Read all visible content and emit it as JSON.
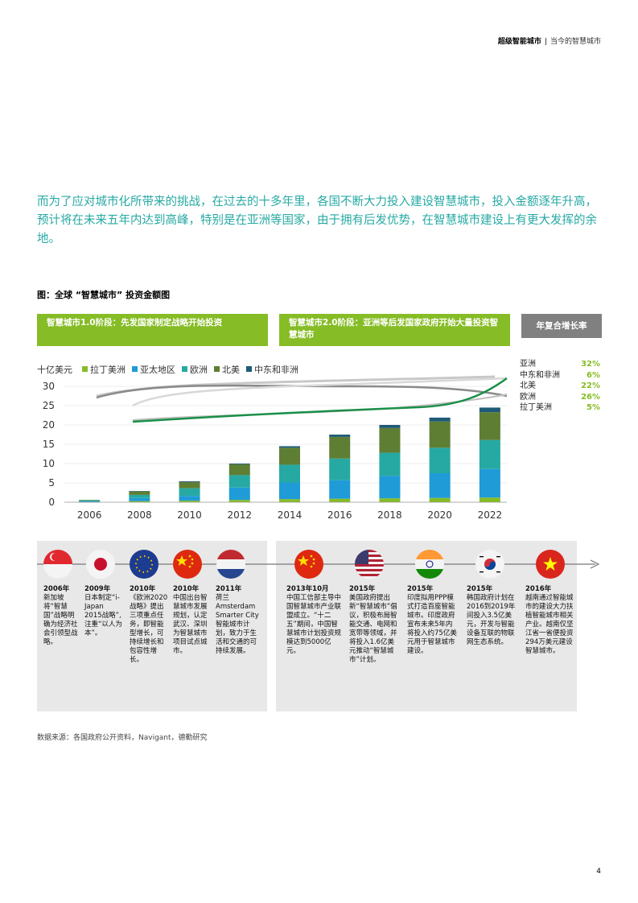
{
  "header": {
    "title": "超级智能城市",
    "separator": "|",
    "subtitle": "当今的智慧城市"
  },
  "intro": "而为了应对城市化所带来的挑战，在过去的十多年里，各国不断大力投入建设智慧城市，投入金额逐年升高，预计将在未来五年内达到高峰，特别是在亚洲等国家，由于拥有后发优势，在智慧城市建设上有更大发挥的余地。",
  "figure": {
    "title": "图：全球 “智慧城市” 投资金额图",
    "phase1": "智慧城市1.0阶段：先发国家制定战略开始投资",
    "phase2": "智慧城市2.0阶段：亚洲等后发国家政府开始大量投资智慧城市",
    "cagr_header": "年复合增长率",
    "cagr": [
      {
        "region": "亚洲",
        "rate": "32%"
      },
      {
        "region": "中东和非洲",
        "rate": "6%"
      },
      {
        "region": "北美",
        "rate": "22%"
      },
      {
        "region": "欧洲",
        "rate": "26%"
      },
      {
        "region": "拉丁美洲",
        "rate": "5%"
      }
    ]
  },
  "chart_data": {
    "type": "bar",
    "ylabel": "十亿美元",
    "ylim": [
      0,
      30
    ],
    "yticks": [
      "0",
      "5",
      "10",
      "15",
      "20",
      "25",
      "30"
    ],
    "xticks": [
      "2006",
      "2008",
      "2010",
      "2012",
      "2014",
      "2016",
      "2018",
      "2020",
      "2022"
    ],
    "categories": [
      "2006",
      "2008",
      "2010",
      "2012",
      "2014",
      "2016",
      "2018",
      "2020",
      "2022"
    ],
    "series": [
      {
        "name": "拉丁美洲",
        "color": "#86bc25",
        "values": [
          0.1,
          0.3,
          0.4,
          0.6,
          0.8,
          0.9,
          1.0,
          1.1,
          1.2
        ]
      },
      {
        "name": "亚太地区",
        "color": "#1f9bd7",
        "values": [
          0.2,
          0.8,
          1.2,
          3.2,
          4.3,
          4.8,
          5.8,
          6.4,
          7.4
        ]
      },
      {
        "name": "欧洲",
        "color": "#26a9a3",
        "values": [
          0.2,
          0.8,
          2.0,
          3.2,
          4.6,
          5.6,
          6.0,
          6.6,
          7.5
        ]
      },
      {
        "name": "北美",
        "color": "#5e7e34",
        "values": [
          0.1,
          0.9,
          1.6,
          2.8,
          4.4,
          5.6,
          6.4,
          6.8,
          7.2
        ]
      },
      {
        "name": "中东和非洲",
        "color": "#1f5a78",
        "values": [
          0.0,
          0.1,
          0.2,
          0.2,
          0.4,
          0.6,
          0.8,
          1.0,
          1.2
        ]
      }
    ],
    "legend_position": "top",
    "grid": true
  },
  "timeline": [
    {
      "year": "2006年",
      "text": "新加坡将“智慧国”战略明确为经济社会引领型战略。",
      "flag": "singapore-flag-icon"
    },
    {
      "year": "2009年",
      "text": "日本制定“i-Japan 2015战略”,注重“以人为本”。",
      "flag": "japan-flag-icon"
    },
    {
      "year": "2010年",
      "text": "《欧洲2020战略》提出三项重点任务，即智能型增长，可持续增长和包容性增长。",
      "flag": "eu-flag-icon"
    },
    {
      "year": "2010年",
      "text": "中国出台智慧城市发展规划，认定武汉、深圳为智慧城市项目试点城市。",
      "flag": "china-flag-icon"
    },
    {
      "year": "2011年",
      "text": "荷兰Amsterdam Smarter City智能城市计划，致力于生活和交通的可持续发展。",
      "flag": "netherlands-flag-icon"
    },
    {
      "year": "2013年10月",
      "text": "中国工信部主导中国智慧城市产业联盟成立。“十二五”期间，中国智慧城市计划投资规模达到5000亿元。",
      "flag": "china-flag-icon"
    },
    {
      "year": "2015年",
      "text": "美国政府提出新“智慧城市”倡议，积极布局智能交通、电网和宽带等领域，并将投入1.6亿美元推动“智慧城市”计划。",
      "flag": "usa-flag-icon"
    },
    {
      "year": "2015年",
      "text": "印度拟用PPP模式打造百座智能城市。印度政府宣布未来5年内将投入约75亿美元用于智慧城市建设。",
      "flag": "india-flag-icon"
    },
    {
      "year": "2015年",
      "text": "韩国政府计划在2016到2019年间投入3.5亿美元，开发与智能设备互联的物联网生态系统。",
      "flag": "korea-flag-icon"
    },
    {
      "year": "2016年",
      "text": "越南通过智能城市的建设大力扶植智能城市相关产业。越南仅坚江省一省便投资294万美元建设智慧城市。",
      "flag": "vietnam-flag-icon"
    }
  ],
  "source": "数据来源：各国政府公开资料，Navigant，德勤研究",
  "page_number": "4"
}
